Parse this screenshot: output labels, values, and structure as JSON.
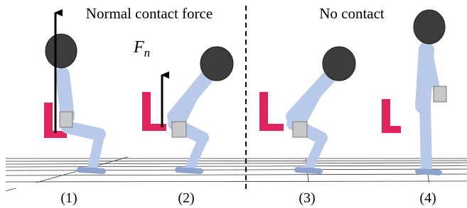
{
  "labels": {
    "left_title": "Normal contact force",
    "right_title": "No contact",
    "force_symbol": "F",
    "force_subscript": "n"
  },
  "frames": [
    "(1)",
    "(2)",
    "(3)",
    "(4)"
  ]
}
